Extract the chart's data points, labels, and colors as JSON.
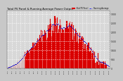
{
  "title": "Total PV Panel & Running Average Power Output",
  "bg_color": "#c8c8c8",
  "plot_bg": "#d8d8d8",
  "bar_color": "#dd0000",
  "bar_edge_color": "#cc0000",
  "avg_color": "#0000cc",
  "grid_color": "#ffffff",
  "n_bars": 144,
  "peak_index": 72,
  "peak_value": 3000,
  "y_max": 3200,
  "y_ticks": [
    0,
    500,
    1000,
    1500,
    2000,
    2500,
    3000
  ],
  "legend_pv_color": "#dd0000",
  "legend_avg_color": "#0000ff",
  "title_color": "#000000"
}
